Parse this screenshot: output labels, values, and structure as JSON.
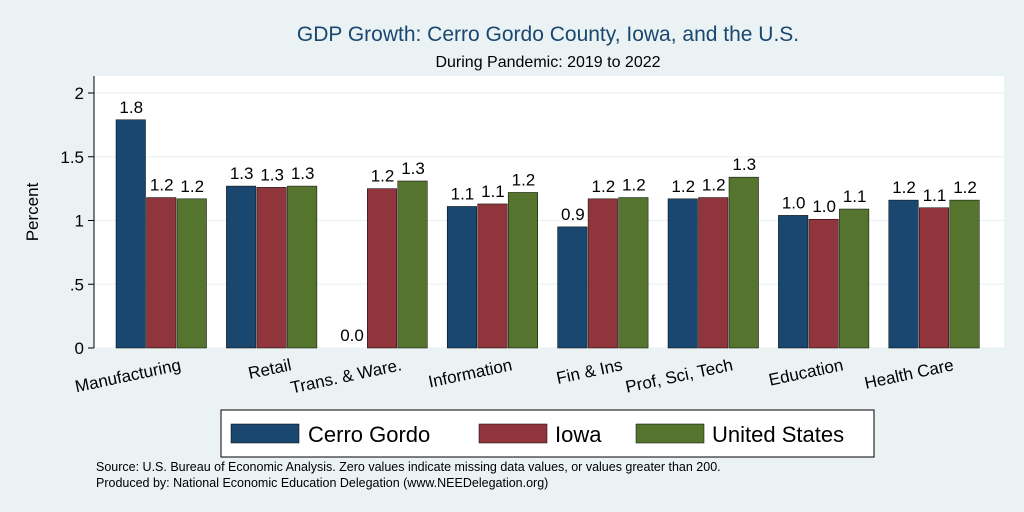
{
  "chart_data": {
    "type": "bar",
    "title": "GDP Growth: Cerro Gordo County, Iowa, and the U.S.",
    "subtitle": "During Pandemic: 2019 to 2022",
    "ylabel": "Percent",
    "xlabel": "",
    "ylim": [
      0,
      2.15
    ],
    "yticks": [
      {
        "value": 0,
        "label": "0"
      },
      {
        "value": 0.5,
        "label": ".5"
      },
      {
        "value": 1,
        "label": "1"
      },
      {
        "value": 1.5,
        "label": "1.5"
      },
      {
        "value": 2,
        "label": "2"
      }
    ],
    "grid": true,
    "legend_position": "bottom",
    "categories": [
      "Manufacturing",
      "Retail",
      "Trans. & Ware.",
      "Information",
      "Fin & Ins",
      "Prof, Sci, Tech",
      "Education",
      "Health Care"
    ],
    "series": [
      {
        "name": "Cerro Gordo",
        "color": "#1a476f",
        "values": [
          1.79,
          1.27,
          0.0,
          1.11,
          0.95,
          1.17,
          1.04,
          1.16
        ],
        "labels": [
          "1.8",
          "1.3",
          "0.0",
          "1.1",
          "0.9",
          "1.2",
          "1.0",
          "1.2"
        ]
      },
      {
        "name": "Iowa",
        "color": "#90353b",
        "values": [
          1.18,
          1.26,
          1.25,
          1.13,
          1.17,
          1.18,
          1.01,
          1.1
        ],
        "labels": [
          "1.2",
          "1.3",
          "1.2",
          "1.1",
          "1.2",
          "1.2",
          "1.0",
          "1.1"
        ]
      },
      {
        "name": "United States",
        "color": "#55752f",
        "values": [
          1.17,
          1.27,
          1.31,
          1.22,
          1.18,
          1.34,
          1.09,
          1.16
        ],
        "labels": [
          "1.2",
          "1.3",
          "1.3",
          "1.2",
          "1.2",
          "1.3",
          "1.1",
          "1.2"
        ]
      }
    ]
  },
  "notes": {
    "source": "Source: U.S. Bureau of Economic Analysis. Zero values indicate missing data values, or values greater than 200.",
    "produced_by": "Produced by: National Economic Education Delegation (www.NEEDelegation.org)"
  }
}
